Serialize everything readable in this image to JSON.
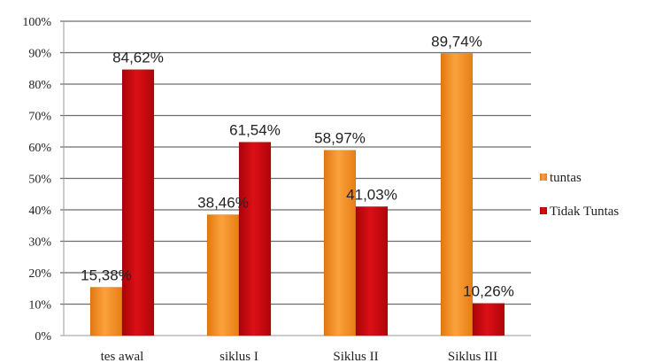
{
  "chart_data": {
    "type": "bar",
    "categories": [
      "tes awal",
      "siklus I",
      "Siklus II",
      "Siklus III"
    ],
    "series": [
      {
        "name": "tuntas",
        "values": [
          15.38,
          38.46,
          58.97,
          89.74
        ],
        "labels": [
          "15,38%",
          "38,46%",
          "58,97%",
          "89,74%"
        ],
        "color": "#F28C1E"
      },
      {
        "name": "Tidak Tuntas",
        "values": [
          84.62,
          61.54,
          41.03,
          10.26
        ],
        "labels": [
          "84,62%",
          "61,54%",
          "41,03%",
          "10,26%"
        ],
        "color": "#C4060C"
      }
    ],
    "yticks": [
      "0%",
      "10%",
      "20%",
      "30%",
      "40%",
      "50%",
      "60%",
      "70%",
      "80%",
      "90%",
      "100%"
    ],
    "ylim": [
      0,
      100
    ],
    "grid": true,
    "legend": "right"
  }
}
